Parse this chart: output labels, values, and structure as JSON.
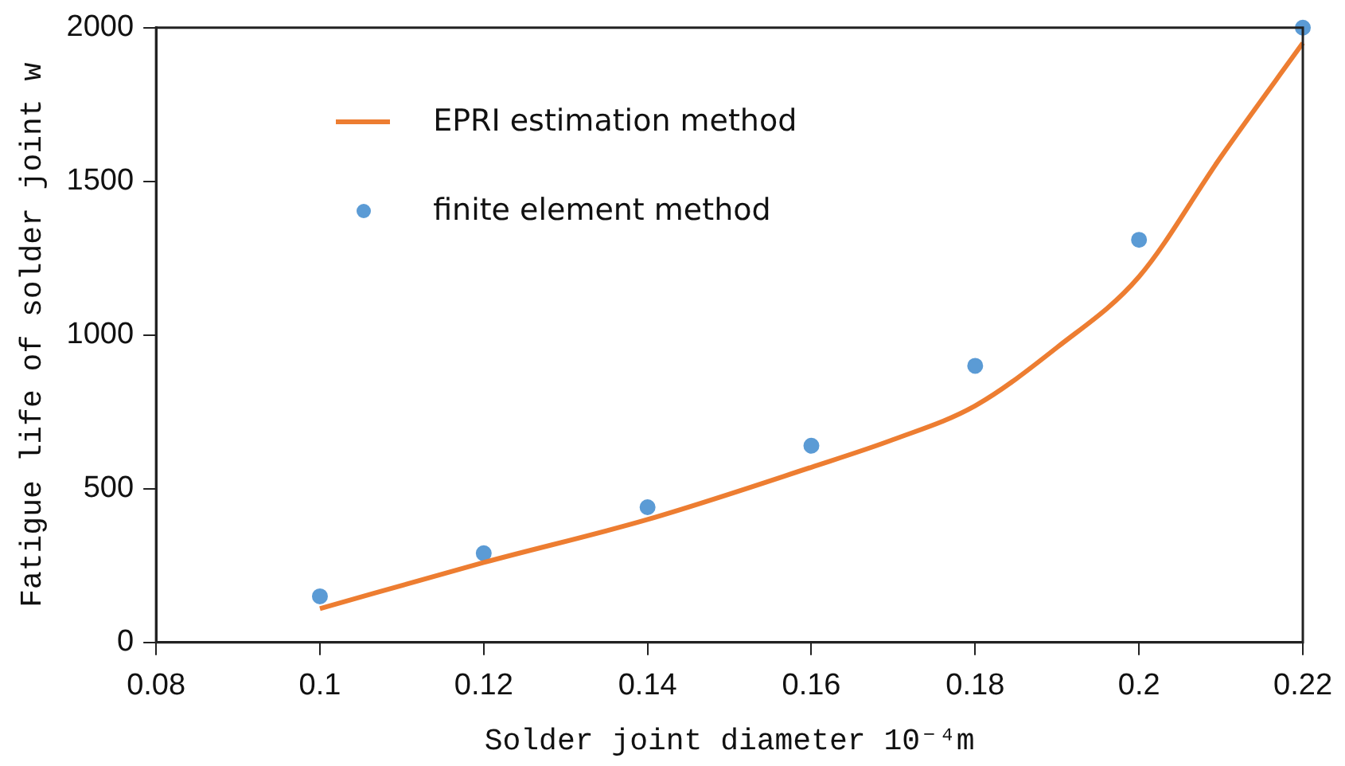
{
  "chart_data": {
    "type": "line",
    "xlabel": "Solder joint diameter 10⁻⁴m",
    "ylabel": "Fatigue life of solder joint w",
    "xlim": [
      0.08,
      0.22
    ],
    "xticks": [
      0.08,
      0.1,
      0.12,
      0.14,
      0.16,
      0.18,
      0.2,
      0.22
    ],
    "ylim": [
      0,
      2000
    ],
    "yticks": [
      0,
      500,
      1000,
      1500,
      2000
    ],
    "legend": "top left",
    "series": [
      {
        "name": "EPRI estimation method",
        "color": "#ed7d31",
        "marker": "none",
        "x": [
          0.1,
          0.12,
          0.14,
          0.16,
          0.17,
          0.18,
          0.19,
          0.2,
          0.21,
          0.22
        ],
        "values": [
          110,
          260,
          400,
          570,
          660,
          770,
          960,
          1190,
          1580,
          1950
        ]
      },
      {
        "name": "finite element method",
        "type": "scatter",
        "color": "#5b9bd5",
        "marker": "circle",
        "x": [
          0.1,
          0.12,
          0.14,
          0.16,
          0.18,
          0.2,
          0.22
        ],
        "values": [
          150,
          290,
          440,
          640,
          900,
          1310,
          2000
        ]
      }
    ]
  }
}
